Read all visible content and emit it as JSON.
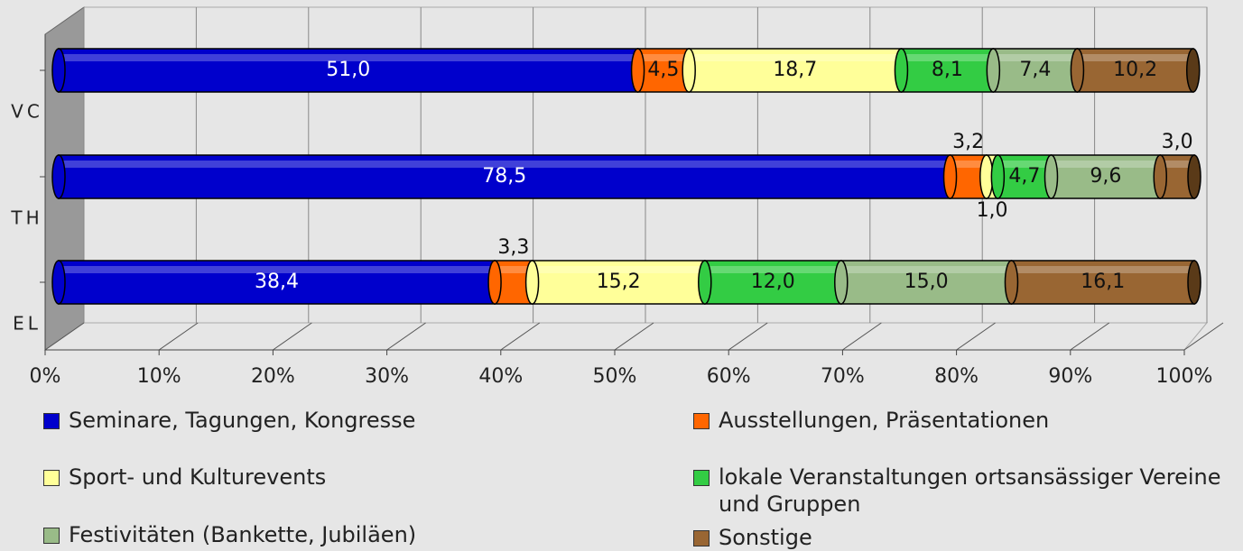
{
  "chart_data": {
    "type": "stacked-bar-horizontal",
    "categories": [
      "VC",
      "TH",
      "EL"
    ],
    "series": [
      {
        "name": "Seminare, Tagungen, Kongresse",
        "color": "#0000cc",
        "values": [
          51.0,
          78.5,
          38.4
        ],
        "value_labels": [
          "51,0",
          "78,5",
          "38,4"
        ]
      },
      {
        "name": "Ausstellungen, Präsentationen",
        "color": "#ff6600",
        "values": [
          4.5,
          3.2,
          3.3
        ],
        "value_labels": [
          "4,5",
          "3,2",
          "3,3"
        ]
      },
      {
        "name": "Sport- und Kulturevents",
        "color": "#ffff99",
        "values": [
          18.7,
          1.0,
          15.2
        ],
        "value_labels": [
          "18,7",
          "1,0",
          "15,2"
        ]
      },
      {
        "name": "lokale Veranstaltungen ortsansässiger Vereine und Gruppen",
        "color": "#33cc44",
        "values": [
          8.1,
          4.7,
          12.0
        ],
        "value_labels": [
          "8,1",
          "4,7",
          "12,0"
        ]
      },
      {
        "name": "Festivitäten (Bankette, Jubiläen)",
        "color": "#99bb88",
        "values": [
          7.4,
          9.6,
          15.0
        ],
        "value_labels": [
          "7,4",
          "9,6",
          "15,0"
        ]
      },
      {
        "name": "Sonstige",
        "color": "#996633",
        "values": [
          10.2,
          3.0,
          16.1
        ],
        "value_labels": [
          "10,2",
          "3,0",
          "16,1"
        ]
      }
    ],
    "xlim": [
      0,
      100
    ],
    "xticks": [
      {
        "value": 0,
        "label": "0%"
      },
      {
        "value": 10,
        "label": "10%"
      },
      {
        "value": 20,
        "label": "20%"
      },
      {
        "value": 30,
        "label": "30%"
      },
      {
        "value": 40,
        "label": "40%"
      },
      {
        "value": 50,
        "label": "50%"
      },
      {
        "value": 60,
        "label": "60%"
      },
      {
        "value": 70,
        "label": "70%"
      },
      {
        "value": 80,
        "label": "80%"
      },
      {
        "value": 90,
        "label": "90%"
      },
      {
        "value": 100,
        "label": "100%"
      }
    ],
    "grid": true,
    "legend": "bottom"
  }
}
